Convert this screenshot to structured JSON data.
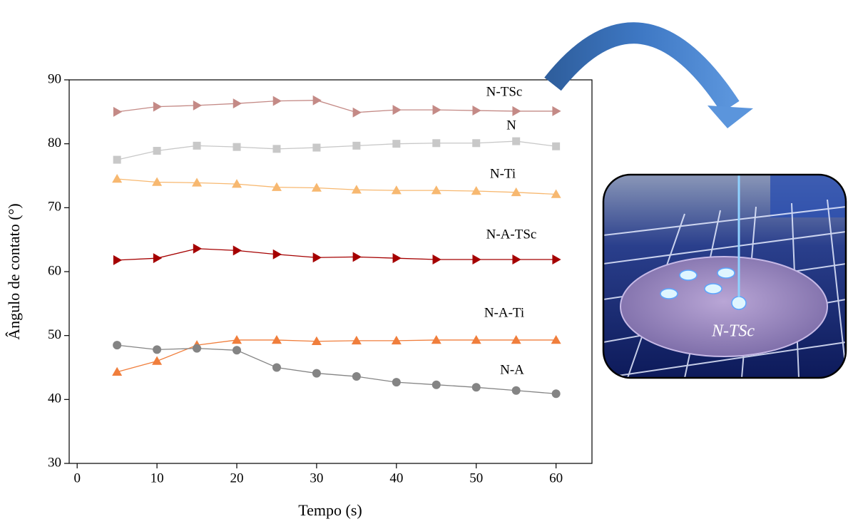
{
  "chart_data": {
    "type": "line",
    "xlabel": "Tempo (s)",
    "ylabel": "Ângulo de contato (°)",
    "x": [
      5,
      10,
      15,
      20,
      25,
      30,
      35,
      40,
      45,
      50,
      55,
      60
    ],
    "xlim": [
      -1,
      64.5
    ],
    "xticks": [
      0,
      10,
      20,
      30,
      40,
      50,
      60
    ],
    "ylim": [
      30,
      90
    ],
    "yticks": [
      30,
      40,
      50,
      60,
      70,
      80,
      90
    ],
    "inset_label": "N-TSc",
    "series": [
      {
        "name": "N-TSc",
        "color": "#c48a86",
        "marker": "triangle-right",
        "values": [
          85.0,
          85.8,
          86.0,
          86.3,
          86.7,
          86.8,
          84.9,
          85.3,
          85.3,
          85.2,
          85.1,
          85.1
        ]
      },
      {
        "name": "N",
        "color": "#c8c8c8",
        "marker": "square",
        "values": [
          77.5,
          78.9,
          79.7,
          79.5,
          79.2,
          79.4,
          79.7,
          80.0,
          80.1,
          80.1,
          80.4,
          79.6
        ]
      },
      {
        "name": "N-Ti",
        "color": "#f7b870",
        "marker": "triangle-up",
        "values": [
          74.5,
          74.0,
          73.9,
          73.7,
          73.2,
          73.1,
          72.8,
          72.7,
          72.7,
          72.6,
          72.4,
          72.1
        ]
      },
      {
        "name": "N-A-TSc",
        "color": "#a50000",
        "marker": "triangle-right",
        "values": [
          61.8,
          62.1,
          63.6,
          63.3,
          62.7,
          62.2,
          62.3,
          62.1,
          61.9,
          61.9,
          61.9,
          61.9
        ]
      },
      {
        "name": "N-A-Ti",
        "color": "#f07e3c",
        "marker": "triangle-up",
        "values": [
          44.3,
          46.0,
          48.5,
          49.3,
          49.3,
          49.1,
          49.2,
          49.2,
          49.3,
          49.3,
          49.3,
          49.3
        ]
      },
      {
        "name": "N-A",
        "color": "#848484",
        "marker": "circle",
        "values": [
          48.5,
          47.8,
          48.0,
          47.7,
          45.0,
          44.1,
          43.6,
          42.7,
          42.3,
          41.9,
          41.4,
          40.9
        ]
      }
    ]
  }
}
